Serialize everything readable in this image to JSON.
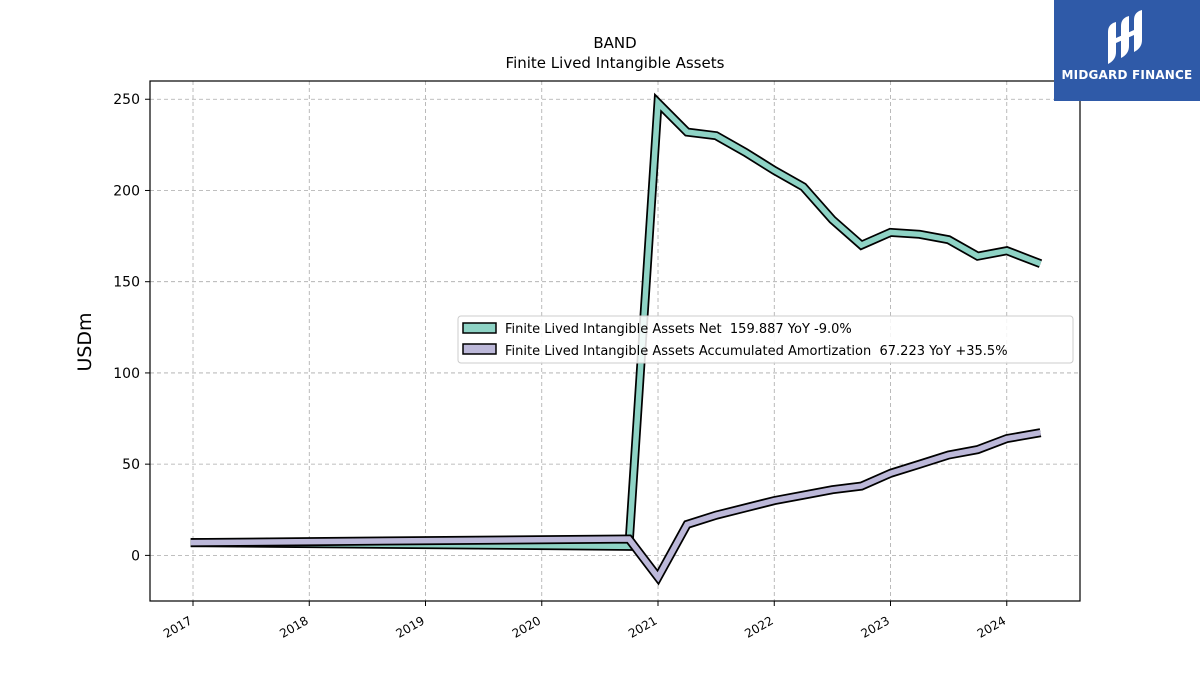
{
  "brand": {
    "name": "MIDGARD FINANCE",
    "color": "#2f5aa8"
  },
  "chart_data": {
    "type": "line",
    "title": "BAND",
    "subtitle": "Finite Lived Intangible Assets",
    "ylabel": "USDm",
    "xlabel": "",
    "ylim": [
      -25,
      260
    ],
    "xlim": [
      2016.63,
      2024.63
    ],
    "yticks": [
      0,
      50,
      100,
      150,
      200,
      250
    ],
    "xticks": [
      2017,
      2018,
      2019,
      2020,
      2021,
      2022,
      2023,
      2024
    ],
    "grid": true,
    "legend_position": "center-right",
    "series": [
      {
        "name": "Finite Lived Intangible Assets Net  159.887 YoY -9.0%",
        "color": "#8ed3c5",
        "x": [
          2016.98,
          2020.75,
          2021.0,
          2021.25,
          2021.5,
          2021.75,
          2022.0,
          2022.25,
          2022.5,
          2022.75,
          2023.0,
          2023.25,
          2023.5,
          2023.75,
          2024.0,
          2024.29
        ],
        "y": [
          7,
          5,
          248,
          232,
          230,
          221,
          211,
          202,
          184,
          170,
          177,
          176,
          173,
          164,
          167,
          159.887
        ]
      },
      {
        "name": "Finite Lived Intangible Assets Accumulated Amortization  67.223 YoY +35.5%",
        "color": "#bcb8d9",
        "x": [
          2016.98,
          2020.75,
          2021.0,
          2021.25,
          2021.5,
          2021.75,
          2022.0,
          2022.25,
          2022.5,
          2022.75,
          2023.0,
          2023.25,
          2023.5,
          2023.75,
          2024.0,
          2024.29
        ],
        "y": [
          7,
          9,
          -12,
          17,
          22,
          26,
          30,
          33,
          36,
          38,
          45,
          50,
          55,
          58,
          64,
          67.223
        ]
      }
    ]
  }
}
